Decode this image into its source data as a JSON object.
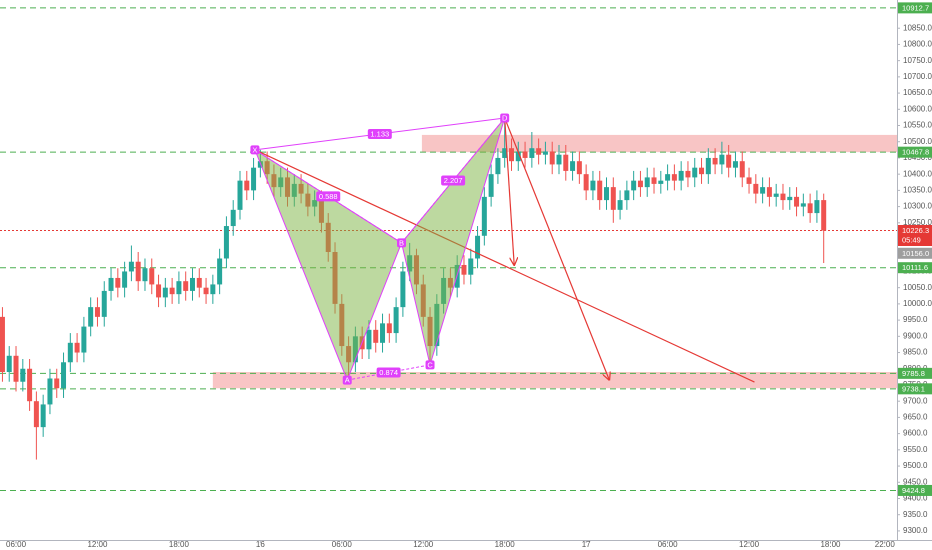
{
  "chart_data": {
    "type": "candlestick",
    "colors": {
      "up": "#26a69a",
      "down": "#ef5350",
      "level": "#4caf50",
      "zone": "#f4a6a6",
      "pattern_fill": "#7cb342",
      "pattern_line": "#e040fb",
      "arrow": "#e53935",
      "last": "#e53935",
      "prev": "#9e9e9e"
    },
    "xlim": [
      4.82,
      70.9
    ],
    "ylim": [
      9272,
      10937
    ],
    "xticks": [
      {
        "value": 6,
        "label": "06:00"
      },
      {
        "value": 12,
        "label": "12:00"
      },
      {
        "value": 18,
        "label": "18:00"
      },
      {
        "value": 24,
        "label": "16"
      },
      {
        "value": 30,
        "label": "06:00"
      },
      {
        "value": 36,
        "label": "12:00"
      },
      {
        "value": 42,
        "label": "18:00"
      },
      {
        "value": 48,
        "label": "17"
      },
      {
        "value": 54,
        "label": "06:00"
      },
      {
        "value": 60,
        "label": "12:00"
      },
      {
        "value": 66,
        "label": "18:00"
      },
      {
        "value": 70,
        "label": "22:00"
      }
    ],
    "yticks": [
      {
        "value": 9300,
        "label": "9300.0"
      },
      {
        "value": 9350,
        "label": "9350.0"
      },
      {
        "value": 9400,
        "label": "9400.0"
      },
      {
        "value": 9450,
        "label": "9450.0"
      },
      {
        "value": 9500,
        "label": "9500.0"
      },
      {
        "value": 9550,
        "label": "9550.0"
      },
      {
        "value": 9600,
        "label": "9600.0"
      },
      {
        "value": 9650,
        "label": "9650.0"
      },
      {
        "value": 9700,
        "label": "9700.0"
      },
      {
        "value": 9750,
        "label": "9750.0"
      },
      {
        "value": 9800,
        "label": "9800.0"
      },
      {
        "value": 9850,
        "label": "9850.0"
      },
      {
        "value": 9900,
        "label": "9900.0"
      },
      {
        "value": 9950,
        "label": "9950.0"
      },
      {
        "value": 10000,
        "label": "10000.0"
      },
      {
        "value": 10050,
        "label": "10050.0"
      },
      {
        "value": 10100,
        "label": "10100.0"
      },
      {
        "value": 10150,
        "label": "10150.0"
      },
      {
        "value": 10200,
        "label": "10200.0"
      },
      {
        "value": 10250,
        "label": "10250.0"
      },
      {
        "value": 10300,
        "label": "10300.0"
      },
      {
        "value": 10350,
        "label": "10350.0"
      },
      {
        "value": 10400,
        "label": "10400.0"
      },
      {
        "value": 10450,
        "label": "10450.0"
      },
      {
        "value": 10500,
        "label": "10500.0"
      },
      {
        "value": 10550,
        "label": "10550.0"
      },
      {
        "value": 10600,
        "label": "10600.0"
      },
      {
        "value": 10650,
        "label": "10650.0"
      },
      {
        "value": 10700,
        "label": "10700.0"
      },
      {
        "value": 10750,
        "label": "10750.0"
      },
      {
        "value": 10800,
        "label": "10800.0"
      },
      {
        "value": 10850,
        "label": "10850.0"
      }
    ],
    "candles": {
      "x": [
        5,
        5.5,
        6,
        6.5,
        7,
        7.5,
        8,
        8.5,
        9,
        9.5,
        10,
        10.5,
        11,
        11.5,
        12,
        12.5,
        13,
        13.5,
        14,
        14.5,
        15,
        15.5,
        16,
        16.5,
        17,
        17.5,
        18,
        18.5,
        19,
        19.5,
        20,
        20.5,
        21,
        21.5,
        22,
        22.5,
        23,
        23.5,
        24,
        24.5,
        25,
        25.5,
        26,
        26.5,
        27,
        27.5,
        28,
        28.5,
        29,
        29.5,
        30,
        30.5,
        31,
        31.5,
        32,
        32.5,
        33,
        33.5,
        34,
        34.5,
        35,
        35.5,
        36,
        36.5,
        37,
        37.5,
        38,
        38.5,
        39,
        39.5,
        40,
        40.5,
        41,
        41.5,
        42,
        42.5,
        43,
        43.5,
        44,
        44.5,
        45,
        45.5,
        46,
        46.5,
        47,
        47.5,
        48,
        48.5,
        49,
        49.5,
        50,
        50.5,
        51,
        51.5,
        52,
        52.5,
        53,
        53.5,
        54,
        54.5,
        55,
        55.5,
        56,
        56.5,
        57,
        57.5,
        58,
        58.5,
        59,
        59.5,
        60,
        60.5,
        61,
        61.5,
        62,
        62.5,
        63,
        63.5,
        64,
        64.5,
        65,
        65.5
      ],
      "open": [
        9960,
        9790,
        9840,
        9760,
        9800,
        9700,
        9620,
        9690,
        9770,
        9740,
        9820,
        9880,
        9850,
        9930,
        9990,
        9960,
        10040,
        10080,
        10050,
        10100,
        10130,
        10070,
        10110,
        10060,
        10020,
        10050,
        10030,
        10070,
        10040,
        10080,
        10050,
        10030,
        10060,
        10140,
        10240,
        10290,
        10380,
        10350,
        10420,
        10440,
        10400,
        10360,
        10390,
        10330,
        10370,
        10340,
        10300,
        10320,
        10250,
        10160,
        10000,
        9870,
        9820,
        9900,
        9860,
        9920,
        9880,
        9940,
        9910,
        9990,
        10100,
        10150,
        10060,
        9960,
        9870,
        10000,
        10080,
        10050,
        10120,
        10090,
        10140,
        10210,
        10330,
        10400,
        10450,
        10480,
        10440,
        10470,
        10450,
        10480,
        10460,
        10470,
        10430,
        10460,
        10410,
        10440,
        10400,
        10350,
        10380,
        10320,
        10360,
        10290,
        10320,
        10350,
        10380,
        10360,
        10390,
        10370,
        10380,
        10400,
        10380,
        10410,
        10390,
        10420,
        10400,
        10450,
        10430,
        10460,
        10420,
        10440,
        10390,
        10370,
        10340,
        10360,
        10330,
        10340,
        10320,
        10330,
        10300,
        10310,
        10280,
        10320
      ],
      "high": [
        9990,
        9870,
        9870,
        9830,
        9830,
        9730,
        9720,
        9800,
        9800,
        9850,
        9910,
        9910,
        9960,
        10020,
        10020,
        10070,
        10110,
        10110,
        10130,
        10180,
        10160,
        10140,
        10140,
        10090,
        10080,
        10080,
        10100,
        10100,
        10110,
        10110,
        10080,
        10090,
        10170,
        10270,
        10320,
        10410,
        10410,
        10450,
        10475,
        10470,
        10430,
        10420,
        10420,
        10400,
        10400,
        10370,
        10350,
        10350,
        10280,
        10190,
        10030,
        9900,
        9930,
        9930,
        9950,
        9950,
        9970,
        9970,
        10020,
        10130,
        10188,
        10170,
        10090,
        9990,
        10030,
        10110,
        10110,
        10150,
        10150,
        10170,
        10240,
        10360,
        10430,
        10480,
        10573,
        10510,
        10500,
        10500,
        10530,
        10510,
        10500,
        10500,
        10490,
        10490,
        10470,
        10470,
        10430,
        10410,
        10410,
        10390,
        10390,
        10350,
        10380,
        10410,
        10410,
        10420,
        10420,
        10410,
        10430,
        10430,
        10440,
        10440,
        10450,
        10450,
        10480,
        10480,
        10500,
        10490,
        10470,
        10470,
        10420,
        10400,
        10390,
        10390,
        10370,
        10370,
        10360,
        10360,
        10340,
        10340,
        10350,
        10340
      ],
      "low": [
        9760,
        9760,
        9730,
        9730,
        9670,
        9520,
        9590,
        9660,
        9710,
        9710,
        9790,
        9820,
        9820,
        9900,
        9930,
        9930,
        10010,
        10020,
        10020,
        10070,
        10040,
        10040,
        10030,
        9990,
        9990,
        10000,
        10000,
        10010,
        10010,
        10020,
        10000,
        10000,
        10030,
        10110,
        10210,
        10260,
        10320,
        10320,
        10390,
        10370,
        10330,
        10330,
        10300,
        10300,
        10310,
        10270,
        10270,
        10220,
        10130,
        9970,
        9840,
        9765,
        9790,
        9830,
        9830,
        9850,
        9850,
        9880,
        9880,
        9960,
        10070,
        10030,
        9930,
        9812,
        9840,
        9970,
        10020,
        10020,
        10060,
        10060,
        10110,
        10180,
        10300,
        10370,
        10420,
        10410,
        10410,
        10420,
        10420,
        10430,
        10430,
        10400,
        10400,
        10380,
        10380,
        10370,
        10320,
        10320,
        10290,
        10290,
        10250,
        10260,
        10290,
        10320,
        10330,
        10330,
        10340,
        10340,
        10350,
        10350,
        10350,
        10360,
        10360,
        10370,
        10370,
        10400,
        10400,
        10390,
        10390,
        10360,
        10340,
        10310,
        10310,
        10300,
        10300,
        10290,
        10290,
        10270,
        10270,
        10250,
        10250,
        10126
      ],
      "close": [
        9790,
        9840,
        9760,
        9800,
        9700,
        9620,
        9690,
        9770,
        9740,
        9820,
        9880,
        9850,
        9930,
        9990,
        9960,
        10040,
        10080,
        10050,
        10100,
        10130,
        10070,
        10110,
        10060,
        10020,
        10050,
        10030,
        10070,
        10040,
        10080,
        10050,
        10030,
        10060,
        10140,
        10240,
        10290,
        10380,
        10350,
        10420,
        10440,
        10400,
        10360,
        10390,
        10330,
        10370,
        10340,
        10300,
        10320,
        10250,
        10160,
        10000,
        9870,
        9820,
        9900,
        9860,
        9920,
        9880,
        9940,
        9910,
        9990,
        10100,
        10150,
        10060,
        9960,
        9870,
        10000,
        10080,
        10050,
        10120,
        10090,
        10140,
        10210,
        10330,
        10400,
        10450,
        10480,
        10440,
        10470,
        10450,
        10480,
        10460,
        10470,
        10430,
        10460,
        10410,
        10440,
        10400,
        10350,
        10380,
        10320,
        10360,
        10290,
        10320,
        10350,
        10380,
        10360,
        10390,
        10370,
        10380,
        10400,
        10380,
        10410,
        10390,
        10420,
        10400,
        10450,
        10430,
        10460,
        10420,
        10440,
        10390,
        10370,
        10340,
        10360,
        10330,
        10340,
        10320,
        10330,
        10300,
        10310,
        10280,
        10320,
        10226.3
      ]
    },
    "zones": [
      {
        "x0": 35.9,
        "y0": 10468,
        "y1": 10521
      },
      {
        "x0": 20.5,
        "y0": 9740,
        "y1": 9790
      }
    ],
    "levels": [
      {
        "value": 10912.7,
        "label": "10912.7"
      },
      {
        "value": 10467.8,
        "label": "10467.8"
      },
      {
        "value": 10111.6,
        "label": "10111.6"
      },
      {
        "value": 9785.8,
        "label": "9785.8"
      },
      {
        "value": 9738.1,
        "label": "9738.1"
      },
      {
        "value": 9424.8,
        "label": "9424.8"
      }
    ],
    "last_price": {
      "value": 10226.3,
      "label": "10226.3",
      "countdown": "05:49"
    },
    "prev_close": {
      "value": 10156,
      "label": "10156.0"
    },
    "pattern": {
      "points": [
        {
          "label": "X",
          "x": 23.6,
          "y": 10475
        },
        {
          "label": "A",
          "x": 30.4,
          "y": 9765
        },
        {
          "label": "B",
          "x": 34.4,
          "y": 10188
        },
        {
          "label": "C",
          "x": 36.5,
          "y": 9812
        },
        {
          "label": "D",
          "x": 42,
          "y": 10573
        }
      ],
      "ratios": [
        "1.133",
        "0.588",
        "0.874",
        "2.207"
      ]
    },
    "trend_line": {
      "x0": 23.6,
      "y0": 10475,
      "x1": 60.4,
      "y1": 9759
    },
    "arrows": [
      {
        "x0": 42,
        "y0": 10573,
        "x1": 42.7,
        "y1": 10120
      },
      {
        "x0": 42,
        "y0": 10573,
        "x1": 49.7,
        "y1": 9766
      }
    ]
  }
}
